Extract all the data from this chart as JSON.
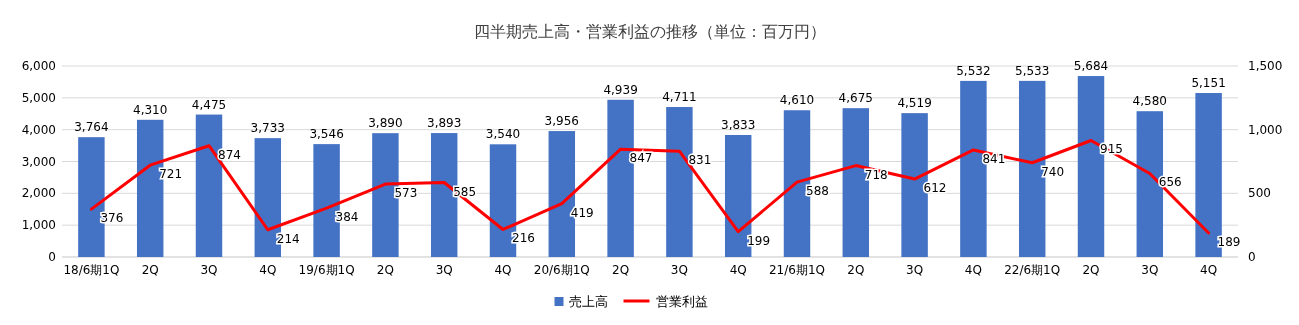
{
  "chart_data": {
    "type": "bar",
    "title": "四半期売上高・営業利益の推移（単位：百万円）",
    "categories": [
      "18/6期1Q",
      "2Q",
      "3Q",
      "4Q",
      "19/6期1Q",
      "2Q",
      "3Q",
      "4Q",
      "20/6期1Q",
      "2Q",
      "3Q",
      "4Q",
      "21/6期1Q",
      "2Q",
      "3Q",
      "4Q",
      "22/6期1Q",
      "2Q",
      "3Q",
      "4Q"
    ],
    "series": [
      {
        "name": "売上高",
        "color": "#4472c4",
        "values": [
          3764,
          4310,
          4475,
          3733,
          3546,
          3890,
          3893,
          3540,
          3956,
          4939,
          4711,
          3833,
          4610,
          4675,
          4519,
          5532,
          5533,
          5684,
          4580,
          5151
        ],
        "value_labels": [
          "3,764",
          "4,310",
          "4,475",
          "3,733",
          "3,546",
          "3,890",
          "3,893",
          "3,540",
          "3,956",
          "4,939",
          "4,711",
          "3,833",
          "4,610",
          "4,675",
          "4,519",
          "5,532",
          "5,533",
          "5,684",
          "4,580",
          "5,151"
        ]
      },
      {
        "name": "営業利益",
        "type": "line",
        "axis": "y2",
        "color": "#ff0000",
        "values": [
          376,
          721,
          874,
          214,
          384,
          573,
          585,
          216,
          419,
          847,
          831,
          199,
          588,
          718,
          612,
          841,
          740,
          915,
          656,
          189
        ],
        "value_labels": [
          "376",
          "721",
          "874",
          "214",
          "384",
          "573",
          "585",
          "216",
          "419",
          "847",
          "831",
          "199",
          "588",
          "718",
          "612",
          "841",
          "740",
          "915",
          "656",
          "189"
        ]
      }
    ],
    "ylim": [
      0,
      6000
    ],
    "yticks": [
      {
        "value": 0,
        "label": "0"
      },
      {
        "value": 1000,
        "label": "1,000"
      },
      {
        "value": 2000,
        "label": "2,000"
      },
      {
        "value": 3000,
        "label": "3,000"
      },
      {
        "value": 4000,
        "label": "4,000"
      },
      {
        "value": 5000,
        "label": "5,000"
      },
      {
        "value": 6000,
        "label": "6,000"
      }
    ],
    "y2lim": [
      0,
      1500
    ],
    "y2ticks": [
      {
        "value": 0,
        "label": "0"
      },
      {
        "value": 500,
        "label": "500"
      },
      {
        "value": 1000,
        "label": "1,000"
      },
      {
        "value": 1500,
        "label": "1,500"
      }
    ],
    "grid": "y",
    "legend": "bottom",
    "marker": "none",
    "line_style": "solid"
  }
}
